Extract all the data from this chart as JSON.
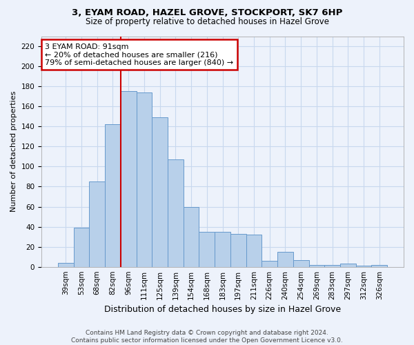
{
  "title": "3, EYAM ROAD, HAZEL GROVE, STOCKPORT, SK7 6HP",
  "subtitle": "Size of property relative to detached houses in Hazel Grove",
  "xlabel": "Distribution of detached houses by size in Hazel Grove",
  "ylabel": "Number of detached properties",
  "footer_line1": "Contains HM Land Registry data © Crown copyright and database right 2024.",
  "footer_line2": "Contains public sector information licensed under the Open Government Licence v3.0.",
  "categories": [
    "39sqm",
    "53sqm",
    "68sqm",
    "82sqm",
    "96sqm",
    "111sqm",
    "125sqm",
    "139sqm",
    "154sqm",
    "168sqm",
    "183sqm",
    "197sqm",
    "211sqm",
    "226sqm",
    "240sqm",
    "254sqm",
    "269sqm",
    "283sqm",
    "297sqm",
    "312sqm",
    "326sqm"
  ],
  "values": [
    4,
    39,
    85,
    142,
    175,
    174,
    149,
    107,
    60,
    35,
    35,
    33,
    32,
    6,
    15,
    7,
    2,
    2,
    3,
    1,
    2
  ],
  "bar_color": "#b8d0ea",
  "bar_edge_color": "#6699cc",
  "bg_color": "#edf2fb",
  "grid_color": "#c8d8ee",
  "vline_color": "#cc0000",
  "vline_x_index": 3.5,
  "annotation_text": "3 EYAM ROAD: 91sqm\n← 20% of detached houses are smaller (216)\n79% of semi-detached houses are larger (840) →",
  "annotation_box_color": "white",
  "annotation_box_edge": "#cc0000",
  "ylim": [
    0,
    230
  ],
  "yticks": [
    0,
    20,
    40,
    60,
    80,
    100,
    120,
    140,
    160,
    180,
    200,
    220
  ],
  "title_fontsize": 9.5,
  "subtitle_fontsize": 8.5,
  "ylabel_fontsize": 8,
  "xlabel_fontsize": 9,
  "tick_fontsize": 7.5,
  "annot_fontsize": 8,
  "footer_fontsize": 6.5
}
